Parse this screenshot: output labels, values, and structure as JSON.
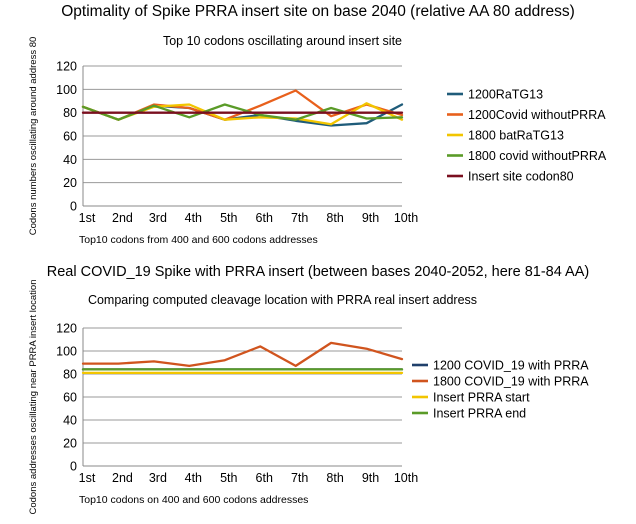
{
  "page": {
    "title_top": "Optimality of Spike PRRA insert site on base 2040 (relative AA 80 address)",
    "title_bottom": "Real COVID_19 Spike with PRRA insert (between bases 2040-2052, here 81-84 AA)"
  },
  "chart_data": [
    {
      "type": "line",
      "title": "Top 10 codons oscillating around insert site",
      "xlabel": "Top10 codons from 400 and 600 codons addresses",
      "ylabel": "Codons numbers oscillating around address 80",
      "categories": [
        "1st",
        "2nd",
        "3rd",
        "4th",
        "5th",
        "6th",
        "7th",
        "8th",
        "9th",
        "10th"
      ],
      "ylim": [
        0,
        120
      ],
      "yticks": [
        0,
        20,
        40,
        60,
        80,
        100,
        120
      ],
      "grid": true,
      "legend_position": "right",
      "series": [
        {
          "name": "1200RaTG13",
          "color": "#1f5c7a",
          "values": [
            85,
            74,
            86,
            84,
            74,
            78,
            73,
            69,
            71,
            87
          ]
        },
        {
          "name": "1200Covid withoutPRRA",
          "color": "#e8601c",
          "values": [
            85,
            74,
            87,
            84,
            74,
            86,
            99,
            77,
            87,
            78
          ]
        },
        {
          "name": "1800 batRaTG13",
          "color": "#f2c500",
          "values": [
            85,
            74,
            85,
            87,
            74,
            76,
            75,
            70,
            88,
            74
          ]
        },
        {
          "name": "1800 covid withoutPRRA",
          "color": "#5a9b28",
          "values": [
            85,
            74,
            86,
            76,
            87,
            78,
            74,
            84,
            75,
            76
          ]
        },
        {
          "name": "Insert site codon80",
          "color": "#7a0f1f",
          "values": [
            80,
            80,
            80,
            80,
            80,
            80,
            80,
            80,
            80,
            80
          ]
        }
      ]
    },
    {
      "type": "line",
      "title": "Comparing computed cleavage location with PRRA real insert address",
      "xlabel": "Top10 codons on 400 and 600 codons addresses",
      "ylabel": "Codons addresses oscillating near PRRA insert location",
      "categories": [
        "1st",
        "2nd",
        "3rd",
        "4th",
        "5th",
        "6th",
        "7th",
        "8th",
        "9th",
        "10th"
      ],
      "ylim": [
        0,
        120
      ],
      "yticks": [
        0,
        20,
        40,
        60,
        80,
        100,
        120
      ],
      "grid": true,
      "legend_position": "right",
      "series": [
        {
          "name": "1200 COVID_19 with PRRA",
          "color": "#1f3f6b",
          "values": [
            84,
            84,
            84,
            84,
            84,
            84,
            84,
            84,
            84,
            84
          ]
        },
        {
          "name": "1800 COVID_19 with PRRA",
          "color": "#d0541e",
          "values": [
            89,
            89,
            91,
            87,
            92,
            104,
            87,
            107,
            102,
            93
          ]
        },
        {
          "name": "Insert PRRA start",
          "color": "#f2c500",
          "values": [
            81,
            81,
            81,
            81,
            81,
            81,
            81,
            81,
            81,
            81
          ]
        },
        {
          "name": "Insert PRRA end",
          "color": "#5a9b28",
          "values": [
            84,
            84,
            84,
            84,
            84,
            84,
            84,
            84,
            84,
            84
          ]
        }
      ]
    }
  ]
}
